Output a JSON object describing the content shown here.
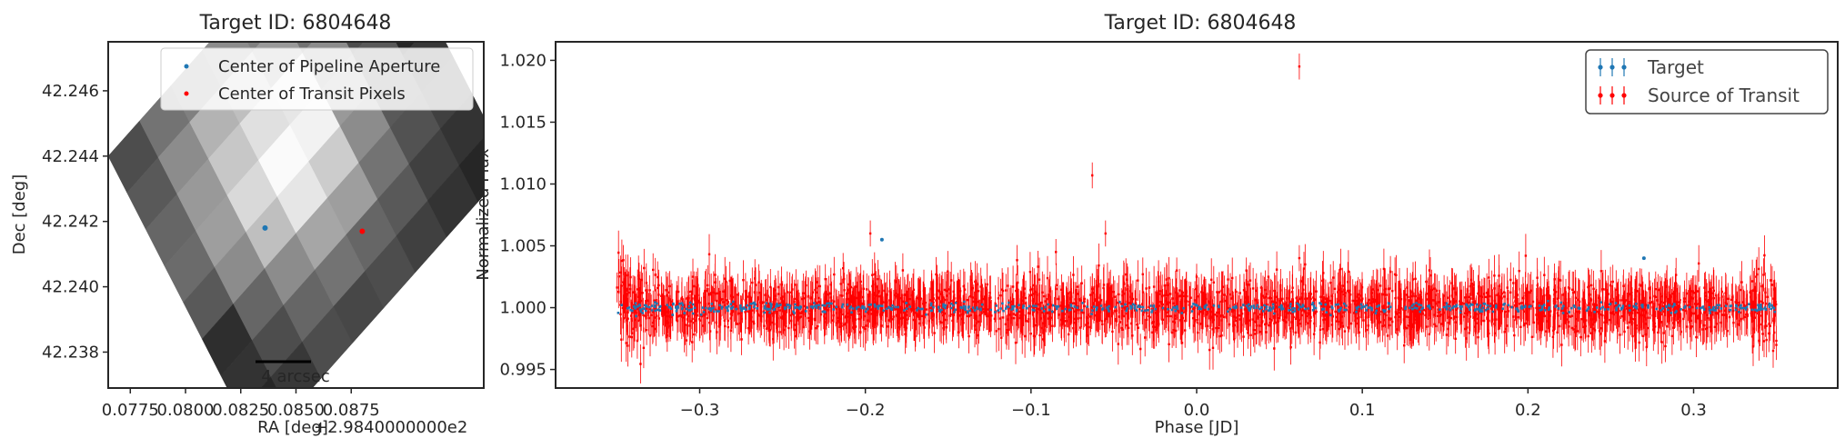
{
  "chart_data": [
    {
      "type": "heatmap",
      "title": "Target ID: 6804648",
      "xlabel": "RA [deg]",
      "ylabel": "Dec [deg]",
      "x_offset_label": "+2.9840000000e2",
      "x_ticks": [
        "0.0775",
        "0.0800",
        "0.0825",
        "0.0850",
        "0.0875"
      ],
      "x_tick_values": [
        0.0775,
        0.08,
        0.0825,
        0.085,
        0.0875
      ],
      "y_ticks": [
        "42.246",
        "42.244",
        "42.242",
        "42.240",
        "42.238"
      ],
      "y_tick_values": [
        42.246,
        42.244,
        42.242,
        42.24,
        42.238
      ],
      "xlim": [
        0.0765,
        0.0935
      ],
      "ylim": [
        42.2369,
        42.2475
      ],
      "grid": false,
      "scalebar_label": "4 arcsec",
      "pixel_grid": {
        "origin": [
          0.0765,
          42.244
        ],
        "col_step": [
          0.00142,
          0.00108
        ],
        "row_step": [
          0.00085,
          -0.00112
        ],
        "values": [
          [
            0.3,
            0.45,
            0.5,
            0.55,
            0.5,
            0.3,
            0.2,
            0.05
          ],
          [
            0.35,
            0.55,
            0.7,
            0.75,
            0.6,
            0.45,
            0.25,
            0.1
          ],
          [
            0.4,
            0.6,
            0.78,
            0.88,
            0.9,
            0.55,
            0.3,
            0.12
          ],
          [
            0.42,
            0.62,
            0.85,
            0.98,
            0.95,
            0.6,
            0.35,
            0.15
          ],
          [
            0.35,
            0.55,
            0.75,
            0.9,
            0.8,
            0.55,
            0.35,
            0.22
          ],
          [
            0.18,
            0.4,
            0.55,
            0.65,
            0.62,
            0.45,
            0.32,
            0.25
          ],
          [
            0.2,
            0.3,
            0.4,
            0.45,
            0.4,
            0.35,
            0.25,
            0.2
          ],
          [
            0.15,
            0.22,
            0.3,
            0.28,
            0.3,
            0.25,
            0.2,
            0.15
          ]
        ]
      },
      "series": [
        {
          "name": "Center of Pipeline Aperture",
          "color": "#1f77b4",
          "x": [
            0.0836
          ],
          "y": [
            42.2418
          ]
        },
        {
          "name": "Center of Transit Pixels",
          "color": "#ff0000",
          "x": [
            0.088
          ],
          "y": [
            42.2417
          ]
        }
      ],
      "legend": "top-right"
    },
    {
      "type": "scatter",
      "title": "Target ID: 6804648",
      "xlabel": "Phase [JD]",
      "ylabel": "Normalized Flux",
      "x_ticks": [
        "−0.3",
        "−0.2",
        "−0.1",
        "0.0",
        "0.1",
        "0.2",
        "0.3"
      ],
      "x_tick_values": [
        -0.3,
        -0.2,
        -0.1,
        0.0,
        0.1,
        0.2,
        0.3
      ],
      "y_ticks": [
        "1.020",
        "1.015",
        "1.010",
        "1.005",
        "1.000",
        "0.995"
      ],
      "y_tick_values": [
        1.02,
        1.015,
        1.01,
        1.005,
        1.0,
        0.995
      ],
      "xlim": [
        -0.387,
        0.387
      ],
      "ylim": [
        0.9935,
        1.0215
      ],
      "grid": false,
      "phase_range": [
        -0.35,
        0.35
      ],
      "n_points": 2600,
      "flux_mean": 1.0,
      "flux_scatter": 0.0011,
      "errorbar": 0.0015,
      "series": [
        {
          "name": "Target",
          "color": "#1f77b4",
          "scatter": 0.0002,
          "errorbar": 0.0001,
          "outliers": [
            {
              "x": -0.19,
              "y": 1.0055
            },
            {
              "x": 0.27,
              "y": 1.004
            }
          ]
        },
        {
          "name": "Source of Transit",
          "color": "#ff0000",
          "outliers": [
            {
              "x": 0.062,
              "y": 1.0195
            },
            {
              "x": -0.063,
              "y": 1.0107
            },
            {
              "x": -0.055,
              "y": 1.006
            },
            {
              "x": -0.197,
              "y": 1.006
            },
            {
              "x": -0.085,
              "y": 1.0045
            },
            {
              "x": 0.062,
              "y": 1.004
            },
            {
              "x": -0.012,
              "y": 1.003
            },
            {
              "x": 0.0,
              "y": 1.0025
            },
            {
              "x": 0.03,
              "y": 1.003
            }
          ]
        }
      ],
      "legend": "top-right"
    }
  ]
}
